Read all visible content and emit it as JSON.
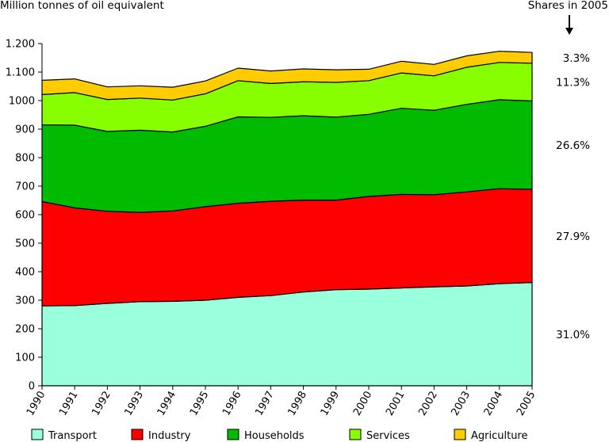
{
  "chart_data": {
    "type": "area",
    "stacked": true,
    "ylabel": "Million tonnes of oil equivalent",
    "shares_title": "Shares in 2005",
    "categories": [
      "1990",
      "1991",
      "1992",
      "1993",
      "1994",
      "1995",
      "1996",
      "1997",
      "1998",
      "1999",
      "2000",
      "2001",
      "2002",
      "2003",
      "2004",
      "2005"
    ],
    "y_ticks": [
      {
        "value": 0,
        "label": "0"
      },
      {
        "value": 100,
        "label": "100"
      },
      {
        "value": 200,
        "label": "200"
      },
      {
        "value": 300,
        "label": "300"
      },
      {
        "value": 400,
        "label": "400"
      },
      {
        "value": 500,
        "label": "500"
      },
      {
        "value": 600,
        "label": "600"
      },
      {
        "value": 700,
        "label": "700"
      },
      {
        "value": 800,
        "label": "800"
      },
      {
        "value": 900,
        "label": "900"
      },
      {
        "value": 1000,
        "label": "1000"
      },
      {
        "value": 1100,
        "label": "1.100"
      },
      {
        "value": 1200,
        "label": "1.200"
      }
    ],
    "ylim": [
      0,
      1200
    ],
    "grid": false,
    "legend_position": "bottom",
    "series": [
      {
        "name": "Transport",
        "color": "#99ffdd",
        "share": "31.0%",
        "values": [
          280,
          281,
          289,
          295,
          296,
          300,
          310,
          316,
          329,
          337,
          339,
          343,
          347,
          350,
          358,
          362
        ]
      },
      {
        "name": "Industry",
        "color": "#ff0000",
        "share": "27.9%",
        "values": [
          366,
          343,
          323,
          313,
          317,
          328,
          330,
          331,
          322,
          314,
          325,
          328,
          323,
          330,
          333,
          327
        ]
      },
      {
        "name": "Households",
        "color": "#00bb00",
        "share": "26.6%",
        "values": [
          269,
          290,
          280,
          288,
          277,
          282,
          303,
          294,
          296,
          291,
          288,
          302,
          296,
          307,
          312,
          310
        ]
      },
      {
        "name": "Services",
        "color": "#88ff00",
        "share": "11.3%",
        "values": [
          106,
          114,
          112,
          113,
          112,
          114,
          127,
          119,
          119,
          122,
          118,
          124,
          121,
          130,
          131,
          132
        ]
      },
      {
        "name": "Agriculture",
        "color": "#ffcc00",
        "share": "3.3%",
        "values": [
          50,
          48,
          44,
          43,
          45,
          45,
          44,
          44,
          45,
          44,
          40,
          41,
          40,
          40,
          39,
          38
        ]
      }
    ]
  }
}
